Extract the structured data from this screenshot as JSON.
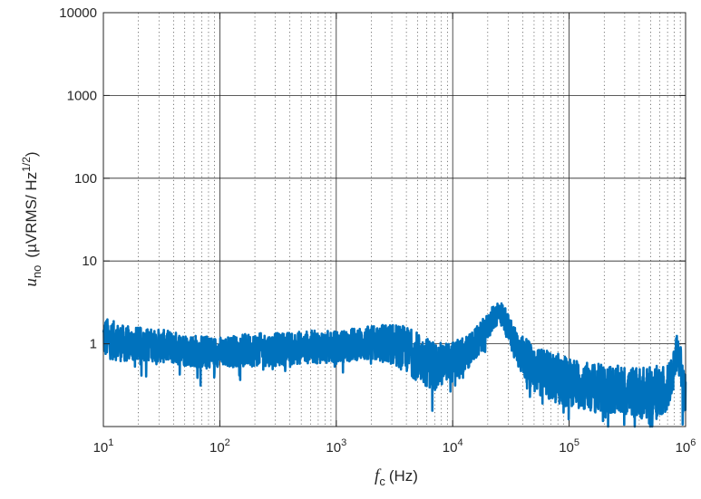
{
  "chart_data": {
    "type": "line",
    "xscale": "log",
    "yscale": "log",
    "xlim": [
      10,
      1000000
    ],
    "ylim": [
      0.1,
      10000
    ],
    "grid": true,
    "minor_grid": true,
    "x_ticks": [
      10,
      100,
      1000,
      10000,
      100000,
      1000000
    ],
    "x_tick_labels": [
      {
        "base": "10",
        "exp": "1"
      },
      {
        "base": "10",
        "exp": "2"
      },
      {
        "base": "10",
        "exp": "3"
      },
      {
        "base": "10",
        "exp": "4"
      },
      {
        "base": "10",
        "exp": "5"
      },
      {
        "base": "10",
        "exp": "6"
      }
    ],
    "y_ticks": [
      1,
      10,
      100,
      1000,
      10000
    ],
    "y_tick_labels": [
      "1",
      "10",
      "100",
      "1000",
      "10000"
    ],
    "xlabel": {
      "symbol": "f",
      "sub": "c",
      "unit": "(Hz)"
    },
    "ylabel": {
      "symbol": "u",
      "sub": "no",
      "unit_main": "(µVRMS/ Hz",
      "unit_sup": "1/2",
      "unit_close": ")"
    },
    "series": [
      {
        "color": "#0072BD",
        "x": [
          10,
          15,
          20,
          30,
          50,
          70,
          100,
          150,
          200,
          300,
          500,
          700,
          1000,
          1500,
          2000,
          3000,
          4000,
          5000,
          6000,
          7000,
          8000,
          10000,
          12000,
          15000,
          18000,
          20000,
          22000,
          25000,
          28000,
          30000,
          35000,
          40000,
          50000,
          70000,
          100000,
          150000,
          200000,
          300000,
          500000,
          700000,
          800000,
          850000,
          900000,
          950000,
          1000000
        ],
        "y": [
          1.2,
          1.0,
          1.0,
          0.95,
          0.85,
          0.8,
          0.8,
          0.82,
          0.85,
          0.85,
          0.9,
          0.92,
          0.9,
          1.0,
          1.0,
          1.0,
          0.85,
          0.7,
          0.6,
          0.55,
          0.55,
          0.6,
          0.7,
          0.9,
          1.3,
          1.6,
          2.0,
          2.5,
          2.0,
          1.5,
          1.0,
          0.7,
          0.5,
          0.4,
          0.35,
          0.3,
          0.28,
          0.27,
          0.25,
          0.3,
          0.5,
          0.9,
          0.6,
          0.3,
          0.25
        ],
        "amplitude": [
          0.25,
          0.22,
          0.2,
          0.2,
          0.2,
          0.2,
          0.18,
          0.2,
          0.2,
          0.2,
          0.2,
          0.2,
          0.2,
          0.2,
          0.22,
          0.25,
          0.28,
          0.3,
          0.3,
          0.3,
          0.28,
          0.25,
          0.22,
          0.2,
          0.18,
          0.16,
          0.15,
          0.15,
          0.16,
          0.18,
          0.22,
          0.25,
          0.28,
          0.3,
          0.3,
          0.3,
          0.3,
          0.3,
          0.32,
          0.3,
          0.25,
          0.2,
          0.22,
          0.3,
          0.3
        ]
      }
    ]
  }
}
